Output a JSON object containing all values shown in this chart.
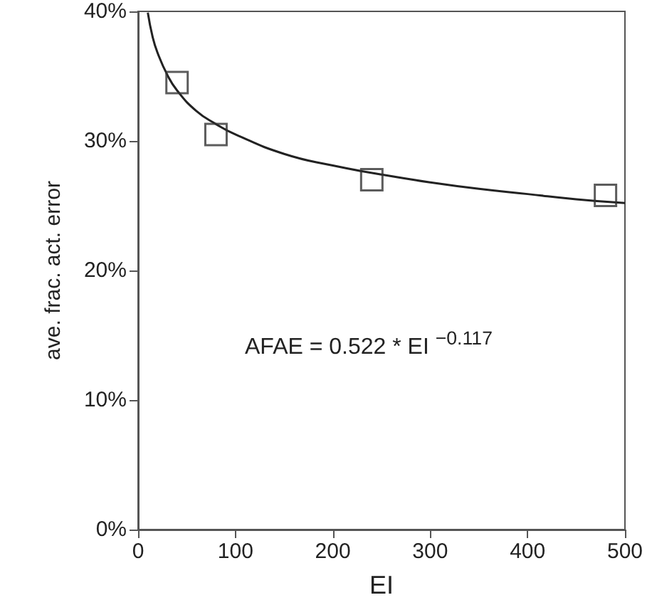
{
  "chart_data": {
    "type": "scatter",
    "xlabel": "EI",
    "ylabel": "ave. frac. act. error",
    "xlim": [
      0,
      500
    ],
    "xticks": [
      0,
      100,
      200,
      300,
      400,
      500
    ],
    "ylim": [
      0,
      40
    ],
    "yticks": [
      {
        "value": 0,
        "label": "0%"
      },
      {
        "value": 10,
        "label": "10%"
      },
      {
        "value": 20,
        "label": "20%"
      },
      {
        "value": 30,
        "label": "30%"
      },
      {
        "value": 40,
        "label": "40%"
      }
    ],
    "grid": false,
    "series": [
      {
        "marker": "square",
        "color": "#333333",
        "x": [
          40,
          80,
          240,
          480
        ],
        "values": [
          34.5,
          30.5,
          27,
          25.8
        ]
      },
      {
        "type": "line",
        "marker": "none",
        "color": "#222222",
        "x": [
          10,
          15,
          20,
          30,
          40,
          60,
          80,
          100,
          150,
          200,
          250,
          300,
          350,
          400,
          450,
          500
        ],
        "values": [
          39.9,
          38.0,
          36.8,
          35.1,
          33.9,
          32.3,
          31.3,
          30.5,
          29.0,
          28.1,
          27.4,
          26.8,
          26.3,
          25.9,
          25.5,
          25.2
        ]
      }
    ],
    "annotations": [
      "AFAE = 0.522 * EI $^{−0.117}$"
    ]
  }
}
